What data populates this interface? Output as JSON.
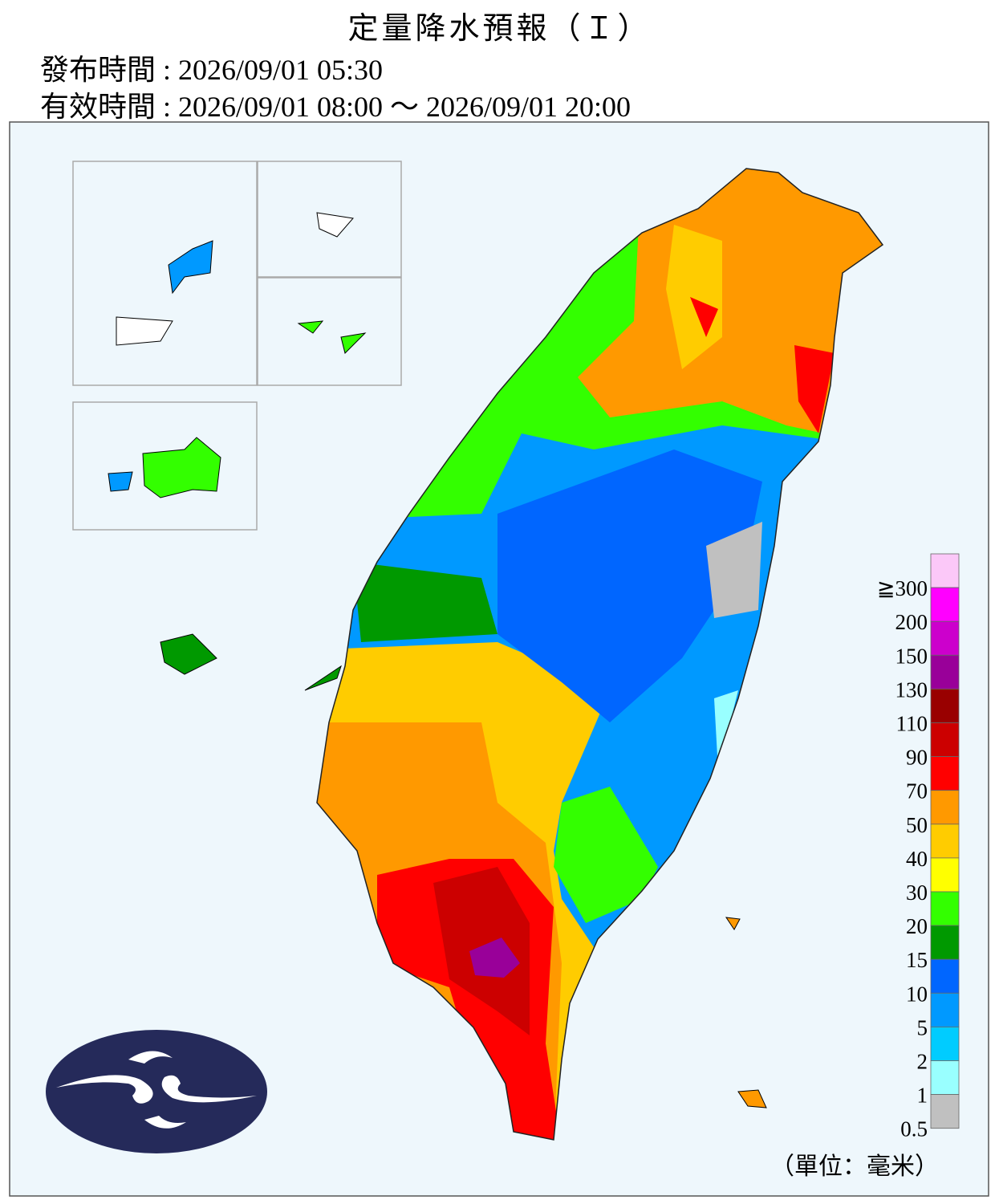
{
  "header": {
    "title": "定量降水預報（Ｉ）",
    "issued": "發布時間 : 2026/09/01 05:30",
    "valid": "有效時間 : 2026/09/01 08:00 ～ 2026/09/01 20:00"
  },
  "legend": {
    "labels": [
      "≧300",
      "200",
      "150",
      "130",
      "110",
      "90",
      "70",
      "50",
      "40",
      "30",
      "20",
      "15",
      "10",
      "5",
      "2",
      "1",
      "0.5"
    ],
    "colors": [
      "#fbc8f8",
      "#ff00ff",
      "#cc00cc",
      "#990099",
      "#990000",
      "#cc0000",
      "#ff0000",
      "#ff9900",
      "#ffcc00",
      "#ffff00",
      "#33ff00",
      "#009900",
      "#0066ff",
      "#0099ff",
      "#00ccff",
      "#99ffff",
      "#c0c0c0"
    ],
    "unit": "（單位：毫米）"
  }
}
